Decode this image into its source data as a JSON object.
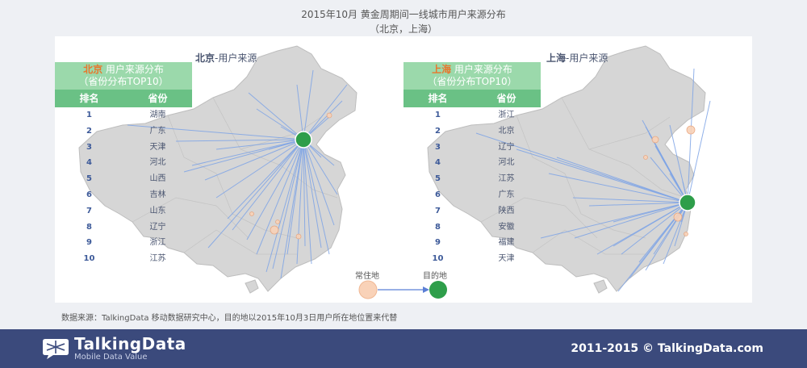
{
  "title_line1": "2015年10月 黄金周期间一线城市用户来源分布",
  "title_line2": "（北京，上海）",
  "chart_data": [
    {
      "type": "table",
      "map_title_city": "北京",
      "map_title_suffix": "-用户来源",
      "head_city": "北京",
      "head_rest": " 用户来源分布",
      "head_sub": "（省份分布TOP10）",
      "columns": [
        "排名",
        "省份"
      ],
      "rows": [
        {
          "rank": "1",
          "province": "湖南"
        },
        {
          "rank": "2",
          "province": "广东"
        },
        {
          "rank": "3",
          "province": "天津"
        },
        {
          "rank": "4",
          "province": "河北"
        },
        {
          "rank": "5",
          "province": "山西"
        },
        {
          "rank": "6",
          "province": "吉林"
        },
        {
          "rank": "7",
          "province": "山东"
        },
        {
          "rank": "8",
          "province": "辽宁"
        },
        {
          "rank": "9",
          "province": "浙江"
        },
        {
          "rank": "10",
          "province": "江苏"
        }
      ]
    },
    {
      "type": "table",
      "map_title_city": "上海",
      "map_title_suffix": "-用户来源",
      "head_city": "上海",
      "head_rest": " 用户来源分布",
      "head_sub": "（省份分布TOP10）",
      "columns": [
        "排名",
        "省份"
      ],
      "rows": [
        {
          "rank": "1",
          "province": "浙江"
        },
        {
          "rank": "2",
          "province": "北京"
        },
        {
          "rank": "3",
          "province": "辽宁"
        },
        {
          "rank": "4",
          "province": "河北"
        },
        {
          "rank": "5",
          "province": "江苏"
        },
        {
          "rank": "6",
          "province": "广东"
        },
        {
          "rank": "7",
          "province": "陕西"
        },
        {
          "rank": "8",
          "province": "安徽"
        },
        {
          "rank": "9",
          "province": "福建"
        },
        {
          "rank": "10",
          "province": "天津"
        }
      ]
    }
  ],
  "legend": {
    "origin_label": "常住地",
    "destination_label": "目的地",
    "origin_color": "#f9d2b8",
    "destination_color": "#2e9e4a"
  },
  "source_note": "数据来源：TalkingData 移动数据研究中心，目的地以2015年10月3日用户所在地位置来代替",
  "footer": {
    "brand": "TalkingData",
    "tagline": "Mobile Data Value",
    "copyright": "2011-2015 © TalkingData.com"
  },
  "colors": {
    "header_green": "#9bd9ab",
    "column_green": "#6ac185",
    "city_orange": "#e8762c",
    "flow_line": "#7ea4e6",
    "map_fill": "#d6d6d6",
    "footer_bg": "#3b4a7c"
  }
}
